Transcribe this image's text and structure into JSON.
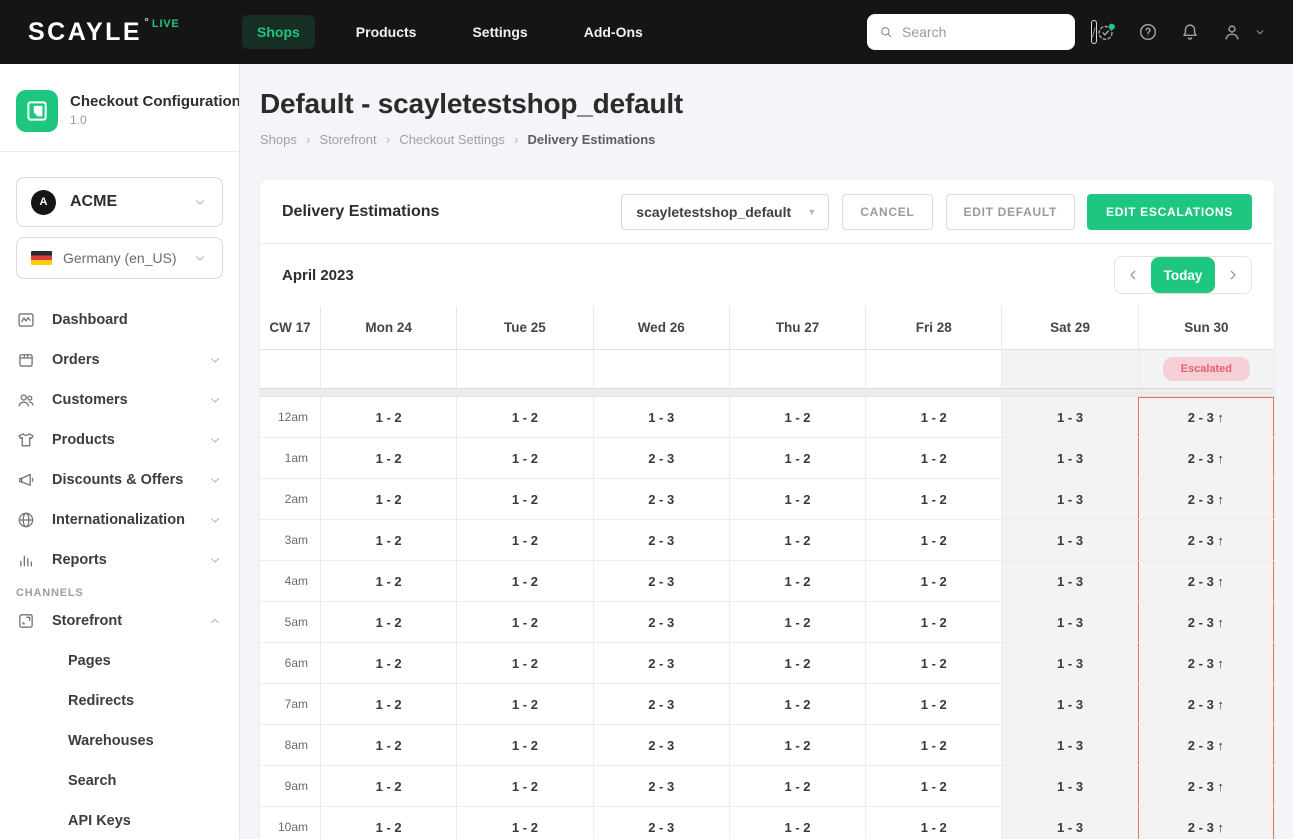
{
  "topbar": {
    "logo": "SCAYLE",
    "logo_mark": "°",
    "live_label": "LIVE",
    "nav": [
      {
        "label": "Shops",
        "active": true
      },
      {
        "label": "Products",
        "active": false
      },
      {
        "label": "Settings",
        "active": false
      },
      {
        "label": "Add-Ons",
        "active": false
      }
    ],
    "search": {
      "placeholder": "Search",
      "shortcut": "/"
    },
    "icons": [
      "system-status",
      "help",
      "notifications",
      "account-menu"
    ]
  },
  "sidebar": {
    "app": {
      "name": "Checkout Configuration ...",
      "version": "1.0"
    },
    "company_selector": {
      "value": "ACME",
      "avatar_letter": "A"
    },
    "locale_selector": {
      "value": "Germany (en_US)",
      "flag": "germany-flag"
    },
    "menu": [
      {
        "label": "Dashboard",
        "icon": "dashboard",
        "expandable": false
      },
      {
        "label": "Orders",
        "icon": "orders",
        "expandable": true
      },
      {
        "label": "Customers",
        "icon": "customers",
        "expandable": true
      },
      {
        "label": "Products",
        "icon": "products",
        "expandable": true
      },
      {
        "label": "Discounts & Offers",
        "icon": "discounts",
        "expandable": true
      },
      {
        "label": "Internationalization",
        "icon": "globe",
        "expandable": true
      },
      {
        "label": "Reports",
        "icon": "reports",
        "expandable": true
      }
    ],
    "section_label": "CHANNELS",
    "channels": [
      {
        "label": "Storefront",
        "icon": "storefront",
        "expanded": true,
        "children": [
          "Pages",
          "Redirects",
          "Warehouses",
          "Search",
          "API Keys"
        ]
      }
    ]
  },
  "page": {
    "title": "Default - scayletestshop_default",
    "breadcrumb": [
      "Shops",
      "Storefront",
      "Checkout Settings",
      "Delivery Estimations"
    ]
  },
  "panel": {
    "title": "Delivery Estimations",
    "shop_select_value": "scayletestshop_default",
    "cancel_label": "CANCEL",
    "edit_default_label": "EDIT DEFAULT",
    "edit_escalations_label": "EDIT ESCALATIONS"
  },
  "calendar": {
    "month_label": "April 2023",
    "today_label": "Today",
    "week_label": "CW 17",
    "escalated_badge": "Escalated",
    "days": [
      {
        "label": "Mon 24",
        "weekend": false,
        "escalated": false
      },
      {
        "label": "Tue 25",
        "weekend": false,
        "escalated": false
      },
      {
        "label": "Wed 26",
        "weekend": false,
        "escalated": false
      },
      {
        "label": "Thu 27",
        "weekend": false,
        "escalated": false
      },
      {
        "label": "Fri 28",
        "weekend": false,
        "escalated": false
      },
      {
        "label": "Sat 29",
        "weekend": true,
        "escalated": false
      },
      {
        "label": "Sun 30",
        "weekend": true,
        "escalated": true
      }
    ],
    "rows": [
      {
        "time": "12am",
        "values": [
          "1 - 2",
          "1 - 2",
          "1 - 3",
          "1 - 2",
          "1 - 2",
          "1 - 3",
          "2 - 3 ↑"
        ]
      },
      {
        "time": "1am",
        "values": [
          "1 - 2",
          "1 - 2",
          "2 - 3",
          "1 - 2",
          "1 - 2",
          "1 - 3",
          "2 - 3 ↑"
        ]
      },
      {
        "time": "2am",
        "values": [
          "1 - 2",
          "1 - 2",
          "2 - 3",
          "1 - 2",
          "1 - 2",
          "1 - 3",
          "2 - 3 ↑"
        ]
      },
      {
        "time": "3am",
        "values": [
          "1 - 2",
          "1 - 2",
          "2 - 3",
          "1 - 2",
          "1 - 2",
          "1 - 3",
          "2 - 3 ↑"
        ]
      },
      {
        "time": "4am",
        "values": [
          "1 - 2",
          "1 - 2",
          "2 - 3",
          "1 - 2",
          "1 - 2",
          "1 - 3",
          "2 - 3 ↑"
        ]
      },
      {
        "time": "5am",
        "values": [
          "1 - 2",
          "1 - 2",
          "2 - 3",
          "1 - 2",
          "1 - 2",
          "1 - 3",
          "2 - 3 ↑"
        ]
      },
      {
        "time": "6am",
        "values": [
          "1 - 2",
          "1 - 2",
          "2 - 3",
          "1 - 2",
          "1 - 2",
          "1 - 3",
          "2 - 3 ↑"
        ]
      },
      {
        "time": "7am",
        "values": [
          "1 - 2",
          "1 - 2",
          "2 - 3",
          "1 - 2",
          "1 - 2",
          "1 - 3",
          "2 - 3 ↑"
        ]
      },
      {
        "time": "8am",
        "values": [
          "1 - 2",
          "1 - 2",
          "2 - 3",
          "1 - 2",
          "1 - 2",
          "1 - 3",
          "2 - 3 ↑"
        ]
      },
      {
        "time": "9am",
        "values": [
          "1 - 2",
          "1 - 2",
          "2 - 3",
          "1 - 2",
          "1 - 2",
          "1 - 3",
          "2 - 3 ↑"
        ]
      },
      {
        "time": "10am",
        "values": [
          "1 - 2",
          "1 - 2",
          "2 - 3",
          "1 - 2",
          "1 - 2",
          "1 - 3",
          "2 - 3 ↑"
        ]
      }
    ]
  },
  "colors": {
    "accent_green": "#1ec77f",
    "topbar_bg": "#151515",
    "page_bg": "#f4f5f8",
    "weekend_bg": "#f3f3f3",
    "escalated_badge_bg": "#f6d0d6",
    "escalated_badge_text": "#e4606e",
    "escalation_column_border": "#ec6f5c"
  }
}
